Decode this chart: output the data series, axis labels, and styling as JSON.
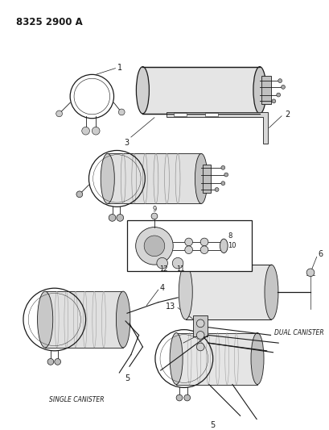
{
  "title": "8325 2900 A",
  "background_color": "#ffffff",
  "line_color": "#1a1a1a",
  "text_color": "#1a1a1a",
  "figsize": [
    4.1,
    5.33
  ],
  "dpi": 100,
  "subtitle_left": "SINGLE CANISTER",
  "subtitle_right": "DUAL CANISTER"
}
